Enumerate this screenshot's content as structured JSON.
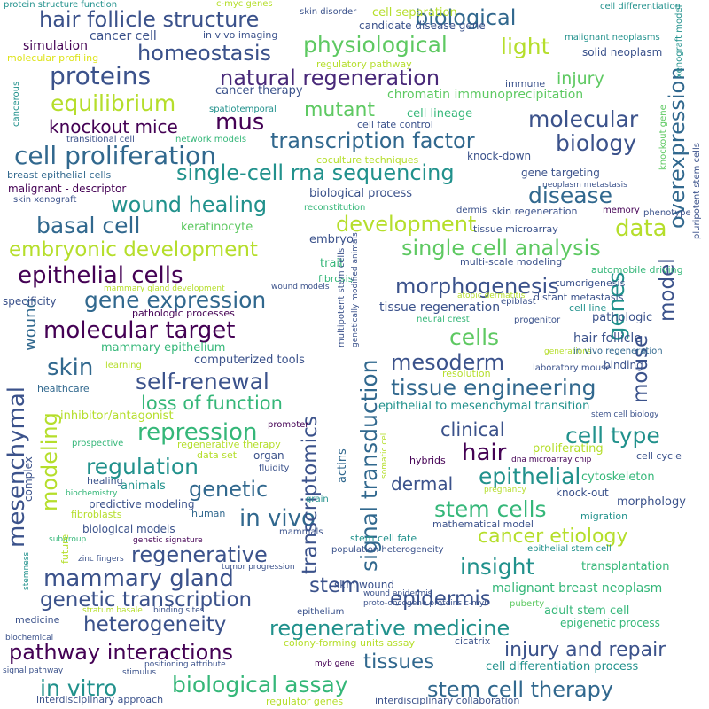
{
  "palette": {
    "p1": "#440154",
    "p2": "#3b528b",
    "p3": "#31688e",
    "p4": "#21918c",
    "p5": "#35b779",
    "p6": "#5ec962",
    "p7": "#b5de2b",
    "p8": "#dde318",
    "p9": "#482878"
  },
  "words": [
    {
      "text": "hair follicle structure",
      "color": "#3b528b"
    },
    {
      "text": "biological",
      "color": "#31688e"
    },
    {
      "text": "physiological",
      "color": "#5ec962"
    },
    {
      "text": "light",
      "color": "#b5de2b"
    },
    {
      "text": "homeostasis",
      "color": "#3b528b"
    },
    {
      "text": "natural regeneration",
      "color": "#482878"
    },
    {
      "text": "proteins",
      "color": "#3b528b"
    },
    {
      "text": "equilibrium",
      "color": "#b5de2b"
    },
    {
      "text": "injury",
      "color": "#5ec962"
    },
    {
      "text": "overexpression",
      "color": "#31688e"
    },
    {
      "text": "mutant",
      "color": "#5ec962"
    },
    {
      "text": "knockout mice",
      "color": "#440154"
    },
    {
      "text": "mus",
      "color": "#440154"
    },
    {
      "text": "molecular",
      "color": "#3b528b"
    },
    {
      "text": "transcription factor",
      "color": "#31688e"
    },
    {
      "text": "biology",
      "color": "#3b528b"
    },
    {
      "text": "cell proliferation",
      "color": "#31688e"
    },
    {
      "text": "single-cell rna sequencing",
      "color": "#21918c"
    },
    {
      "text": "wound healing",
      "color": "#21918c"
    },
    {
      "text": "disease",
      "color": "#31688e"
    },
    {
      "text": "basal cell",
      "color": "#31688e"
    },
    {
      "text": "development",
      "color": "#b5de2b"
    },
    {
      "text": "data",
      "color": "#b5de2b"
    },
    {
      "text": "embryonic development",
      "color": "#b5de2b"
    },
    {
      "text": "single cell analysis",
      "color": "#5ec962"
    },
    {
      "text": "model",
      "color": "#3b528b"
    },
    {
      "text": "epithelial cells",
      "color": "#440154"
    },
    {
      "text": "morphogenesis",
      "color": "#3b528b"
    },
    {
      "text": "gene expression",
      "color": "#31688e"
    },
    {
      "text": "genes",
      "color": "#21918c"
    },
    {
      "text": "mouse",
      "color": "#3b528b"
    },
    {
      "text": "molecular target",
      "color": "#440154"
    },
    {
      "text": "cells",
      "color": "#5ec962"
    },
    {
      "text": "skin",
      "color": "#31688e"
    },
    {
      "text": "mesoderm",
      "color": "#3b528b"
    },
    {
      "text": "self-renewal",
      "color": "#3b528b"
    },
    {
      "text": "tissue engineering",
      "color": "#31688e"
    },
    {
      "text": "loss of function",
      "color": "#35b779"
    },
    {
      "text": "repression",
      "color": "#35b779"
    },
    {
      "text": "clinical",
      "color": "#3b528b"
    },
    {
      "text": "cell type",
      "color": "#21918c"
    },
    {
      "text": "hair",
      "color": "#440154"
    },
    {
      "text": "regulation",
      "color": "#21918c"
    },
    {
      "text": "epithelial",
      "color": "#21918c"
    },
    {
      "text": "genetic",
      "color": "#31688e"
    },
    {
      "text": "dermal",
      "color": "#3b528b"
    },
    {
      "text": "in vivo",
      "color": "#31688e"
    },
    {
      "text": "stem cells",
      "color": "#35b779"
    },
    {
      "text": "cancer etiology",
      "color": "#b5de2b"
    },
    {
      "text": "regenerative",
      "color": "#3b528b"
    },
    {
      "text": "mammary gland",
      "color": "#3b528b"
    },
    {
      "text": "insight",
      "color": "#21918c"
    },
    {
      "text": "stem",
      "color": "#3b528b"
    },
    {
      "text": "epidermis",
      "color": "#3b528b"
    },
    {
      "text": "genetic transcription",
      "color": "#3b528b"
    },
    {
      "text": "heterogeneity",
      "color": "#3b528b"
    },
    {
      "text": "regenerative medicine",
      "color": "#21918c"
    },
    {
      "text": "pathway interactions",
      "color": "#440154"
    },
    {
      "text": "injury and repair",
      "color": "#3b528b"
    },
    {
      "text": "tissues",
      "color": "#31688e"
    },
    {
      "text": "in vitro",
      "color": "#21918c"
    },
    {
      "text": "biological assay",
      "color": "#35b779"
    },
    {
      "text": "stem cell therapy",
      "color": "#31688e"
    },
    {
      "text": "mesenchymal",
      "color": "#3b528b"
    },
    {
      "text": "modeling",
      "color": "#b5de2b"
    },
    {
      "text": "wound",
      "color": "#31688e"
    },
    {
      "text": "transcriptomics",
      "color": "#3b528b"
    },
    {
      "text": "signal transduction",
      "color": "#31688e"
    },
    {
      "text": "protein structure function",
      "color": "#21918c"
    },
    {
      "text": "c-myc genes",
      "color": "#b5de2b"
    },
    {
      "text": "skin disorder",
      "color": "#3b528b"
    },
    {
      "text": "cell differentiation",
      "color": "#21918c"
    },
    {
      "text": "cell separation",
      "color": "#b5de2b"
    },
    {
      "text": "candidate disease gene",
      "color": "#3b528b"
    },
    {
      "text": "malignant neoplasms",
      "color": "#21918c"
    },
    {
      "text": "xenograft model",
      "color": "#21918c"
    },
    {
      "text": "simulation",
      "color": "#440154"
    },
    {
      "text": "cancer cell",
      "color": "#3b528b"
    },
    {
      "text": "in vivo imaging",
      "color": "#3b528b"
    },
    {
      "text": "solid neoplasm",
      "color": "#3b528b"
    },
    {
      "text": "molecular profiling",
      "color": "#dde318"
    },
    {
      "text": "regulatory pathway",
      "color": "#b5de2b"
    },
    {
      "text": "cancer therapy",
      "color": "#3b528b"
    },
    {
      "text": "immune",
      "color": "#3b528b"
    },
    {
      "text": "chromatin immunoprecipitation",
      "color": "#5ec962"
    },
    {
      "text": "cancerous",
      "color": "#21918c"
    },
    {
      "text": "spatiotemporal",
      "color": "#21918c"
    },
    {
      "text": "cell lineage",
      "color": "#35b779"
    },
    {
      "text": "cell fate control",
      "color": "#3b528b"
    },
    {
      "text": "transitional cell",
      "color": "#3b528b"
    },
    {
      "text": "network models",
      "color": "#35b779"
    },
    {
      "text": "knockout gene",
      "color": "#5ec962"
    },
    {
      "text": "pluripotent stem cells",
      "color": "#3b528b"
    },
    {
      "text": "coculture techniques",
      "color": "#b5de2b"
    },
    {
      "text": "knock-down",
      "color": "#3b528b"
    },
    {
      "text": "breast epithelial cells",
      "color": "#31688e"
    },
    {
      "text": "gene targeting",
      "color": "#3b528b"
    },
    {
      "text": "malignant - descriptor",
      "color": "#440154"
    },
    {
      "text": "biological process",
      "color": "#3b528b"
    },
    {
      "text": "neoplasm metastasis",
      "color": "#3b528b"
    },
    {
      "text": "skin xenograft",
      "color": "#3b528b"
    },
    {
      "text": "reconstitution",
      "color": "#35b779"
    },
    {
      "text": "dermis",
      "color": "#3b528b"
    },
    {
      "text": "skin regeneration",
      "color": "#3b528b"
    },
    {
      "text": "memory",
      "color": "#440154"
    },
    {
      "text": "phenotype",
      "color": "#3b528b"
    },
    {
      "text": "keratinocyte",
      "color": "#5ec962"
    },
    {
      "text": "embryo",
      "color": "#3b528b"
    },
    {
      "text": "tissue microarray",
      "color": "#3b528b"
    },
    {
      "text": "trait",
      "color": "#35b779"
    },
    {
      "text": "multi-scale modeling",
      "color": "#3b528b"
    },
    {
      "text": "automobile driving",
      "color": "#35b779"
    },
    {
      "text": "fibrosis",
      "color": "#35b779"
    },
    {
      "text": "tumorigenesis",
      "color": "#3b528b"
    },
    {
      "text": "mammary gland development",
      "color": "#b5de2b"
    },
    {
      "text": "wound models",
      "color": "#3b528b"
    },
    {
      "text": "atopic dermatitis",
      "color": "#b5de2b"
    },
    {
      "text": "distant metastasis",
      "color": "#3b528b"
    },
    {
      "text": "specificity",
      "color": "#3b528b"
    },
    {
      "text": "epiblast",
      "color": "#3b528b"
    },
    {
      "text": "cell line",
      "color": "#21918c"
    },
    {
      "text": "pathologic processes",
      "color": "#440154"
    },
    {
      "text": "multipotent stem cells",
      "color": "#3b528b"
    },
    {
      "text": "genetically modified animals",
      "color": "#3b528b"
    },
    {
      "text": "tissue regeneration",
      "color": "#3b528b"
    },
    {
      "text": "neural crest",
      "color": "#35b779"
    },
    {
      "text": "pathologic",
      "color": "#3b528b"
    },
    {
      "text": "progenitor",
      "color": "#3b528b"
    },
    {
      "text": "mammary epithelium",
      "color": "#35b779"
    },
    {
      "text": "hair follicle",
      "color": "#3b528b"
    },
    {
      "text": "learning",
      "color": "#b5de2b"
    },
    {
      "text": "computerized tools",
      "color": "#3b528b"
    },
    {
      "text": "generations",
      "color": "#b5de2b"
    },
    {
      "text": "in vivo regeneration",
      "color": "#31688e"
    },
    {
      "text": "resolution",
      "color": "#b5de2b"
    },
    {
      "text": "laboratory mouse",
      "color": "#3b528b"
    },
    {
      "text": "binding",
      "color": "#3b528b"
    },
    {
      "text": "healthcare",
      "color": "#31688e"
    },
    {
      "text": "epithelial to mesenchymal transition",
      "color": "#21918c"
    },
    {
      "text": "stem cell biology",
      "color": "#3b528b"
    },
    {
      "text": "inhibitor/antagonist",
      "color": "#b5de2b"
    },
    {
      "text": "promoter",
      "color": "#440154"
    },
    {
      "text": "actins",
      "color": "#31688e"
    },
    {
      "text": "somatic cell",
      "color": "#b5de2b"
    },
    {
      "text": "prospective",
      "color": "#35b779"
    },
    {
      "text": "regenerative therapy",
      "color": "#b5de2b"
    },
    {
      "text": "organ",
      "color": "#3b528b"
    },
    {
      "text": "proliferating",
      "color": "#b5de2b"
    },
    {
      "text": "data set",
      "color": "#b5de2b"
    },
    {
      "text": "fluidity",
      "color": "#3b528b"
    },
    {
      "text": "hybrids",
      "color": "#440154"
    },
    {
      "text": "dna microarray chip",
      "color": "#440154"
    },
    {
      "text": "cell cycle",
      "color": "#3b528b"
    },
    {
      "text": "complex",
      "color": "#3b528b"
    },
    {
      "text": "healing",
      "color": "#3b528b"
    },
    {
      "text": "animals",
      "color": "#21918c"
    },
    {
      "text": "cytoskeleton",
      "color": "#35b779"
    },
    {
      "text": "pregnancy",
      "color": "#b5de2b"
    },
    {
      "text": "knock-out",
      "color": "#3b528b"
    },
    {
      "text": "biochemistry",
      "color": "#35b779"
    },
    {
      "text": "predictive modeling",
      "color": "#3b528b"
    },
    {
      "text": "morphology",
      "color": "#3b528b"
    },
    {
      "text": "grain",
      "color": "#21918c"
    },
    {
      "text": "fibroblasts",
      "color": "#b5de2b"
    },
    {
      "text": "human",
      "color": "#31688e"
    },
    {
      "text": "migration",
      "color": "#21918c"
    },
    {
      "text": "subgroup",
      "color": "#35b779"
    },
    {
      "text": "biological models",
      "color": "#3b528b"
    },
    {
      "text": "mathematical model",
      "color": "#3b528b"
    },
    {
      "text": "mammals",
      "color": "#3b528b"
    },
    {
      "text": "genetic signature",
      "color": "#440154"
    },
    {
      "text": "future",
      "color": "#b5de2b"
    },
    {
      "text": "stem cell fate",
      "color": "#21918c"
    },
    {
      "text": "epithelial stem cell",
      "color": "#21918c"
    },
    {
      "text": "zinc fingers",
      "color": "#3b528b"
    },
    {
      "text": "population heterogeneity",
      "color": "#3b528b"
    },
    {
      "text": "tumor progression",
      "color": "#3b528b"
    },
    {
      "text": "transplantation",
      "color": "#35b779"
    },
    {
      "text": "skin wound",
      "color": "#3b528b"
    },
    {
      "text": "stemness",
      "color": "#21918c"
    },
    {
      "text": "wound epidermis",
      "color": "#3b528b"
    },
    {
      "text": "proto-oncogene proteins c-myb",
      "color": "#3b528b"
    },
    {
      "text": "malignant breast neoplasm",
      "color": "#35b779"
    },
    {
      "text": "puberty",
      "color": "#5ec962"
    },
    {
      "text": "stratum basale",
      "color": "#b5de2b"
    },
    {
      "text": "binding sites",
      "color": "#3b528b"
    },
    {
      "text": "adult stem cell",
      "color": "#35b779"
    },
    {
      "text": "medicine",
      "color": "#3b528b"
    },
    {
      "text": "epithelium",
      "color": "#3b528b"
    },
    {
      "text": "epigenetic process",
      "color": "#35b779"
    },
    {
      "text": "biochemical",
      "color": "#3b528b"
    },
    {
      "text": "colony-forming units assay",
      "color": "#b5de2b"
    },
    {
      "text": "cicatrix",
      "color": "#3b528b"
    },
    {
      "text": "positioning attribute",
      "color": "#3b528b"
    },
    {
      "text": "myb gene",
      "color": "#440154"
    },
    {
      "text": "cell differentiation process",
      "color": "#21918c"
    },
    {
      "text": "signal pathway",
      "color": "#3b528b"
    },
    {
      "text": "stimulus",
      "color": "#3b528b"
    },
    {
      "text": "interdisciplinary approach",
      "color": "#3b528b"
    },
    {
      "text": "regulator genes",
      "color": "#b5de2b"
    },
    {
      "text": "interdisciplinary collaboration",
      "color": "#3b528b"
    }
  ]
}
